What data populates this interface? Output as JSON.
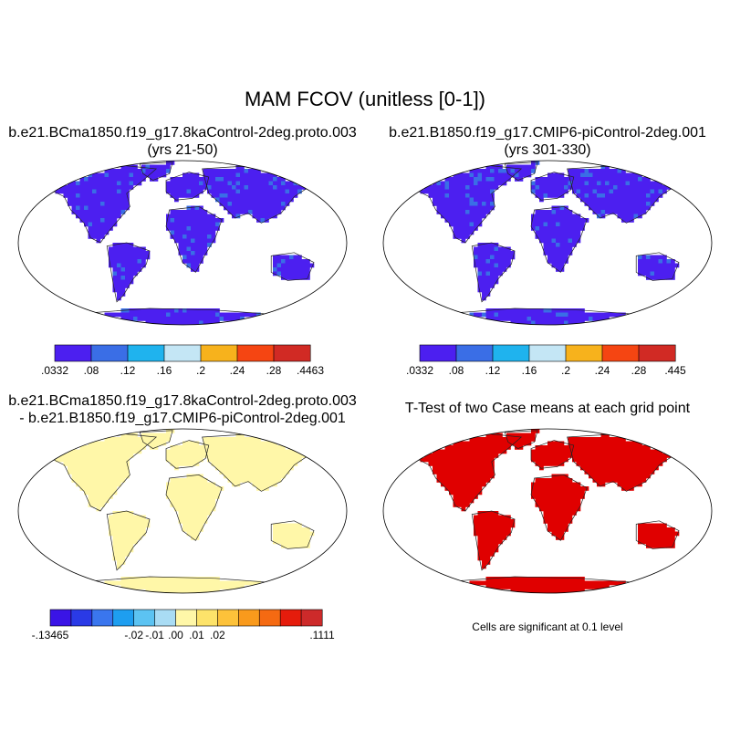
{
  "title": "MAM FCOV (unitless [0-1])",
  "panels": [
    {
      "title_line1": "b.e21.BCma1850.f19_g17.8kaControl-2deg.proto.003",
      "title_line2": "(yrs 21-50)",
      "colorbar": {
        "colors": [
          "#4c1ff0",
          "#3a6ee6",
          "#1fb3ee",
          "#c4e6f5",
          "#f7b21c",
          "#f54512",
          "#d12a24"
        ],
        "labels": [
          ".0332",
          ".08",
          ".12",
          ".16",
          ".2",
          ".24",
          ".28",
          ".4463"
        ]
      }
    },
    {
      "title_line1": "b.e21.B1850.f19_g17.CMIP6-piControl-2deg.001",
      "title_line2": "(yrs 301-330)",
      "colorbar": {
        "colors": [
          "#4c1ff0",
          "#3a6ee6",
          "#1fb3ee",
          "#c4e6f5",
          "#f7b21c",
          "#f54512",
          "#d12a24"
        ],
        "labels": [
          ".0332",
          ".08",
          ".12",
          ".16",
          ".2",
          ".24",
          ".28",
          ".445"
        ]
      }
    },
    {
      "title_line1": "b.e21.BCma1850.f19_g17.8kaControl-2deg.proto.003",
      "title_line2": "- b.e21.B1850.f19_g17.CMIP6-piControl-2deg.001",
      "colorbar": {
        "colors": [
          "#3a14e6",
          "#2a3ae6",
          "#3a76ee",
          "#1e9ef0",
          "#5cc3f2",
          "#a9dcf4",
          "#fff7a8",
          "#fde36a",
          "#fdc23a",
          "#f99a1c",
          "#f56a12",
          "#e51c0c",
          "#cd2a2a"
        ],
        "labels": [
          "-.13465",
          "-.02",
          "-.01",
          ".00",
          ".01",
          ".02",
          ".1111"
        ]
      }
    },
    {
      "title_line1": "T-Test of two Case means at each grid point",
      "note": "Cells are significant at 0.1 level"
    }
  ]
}
